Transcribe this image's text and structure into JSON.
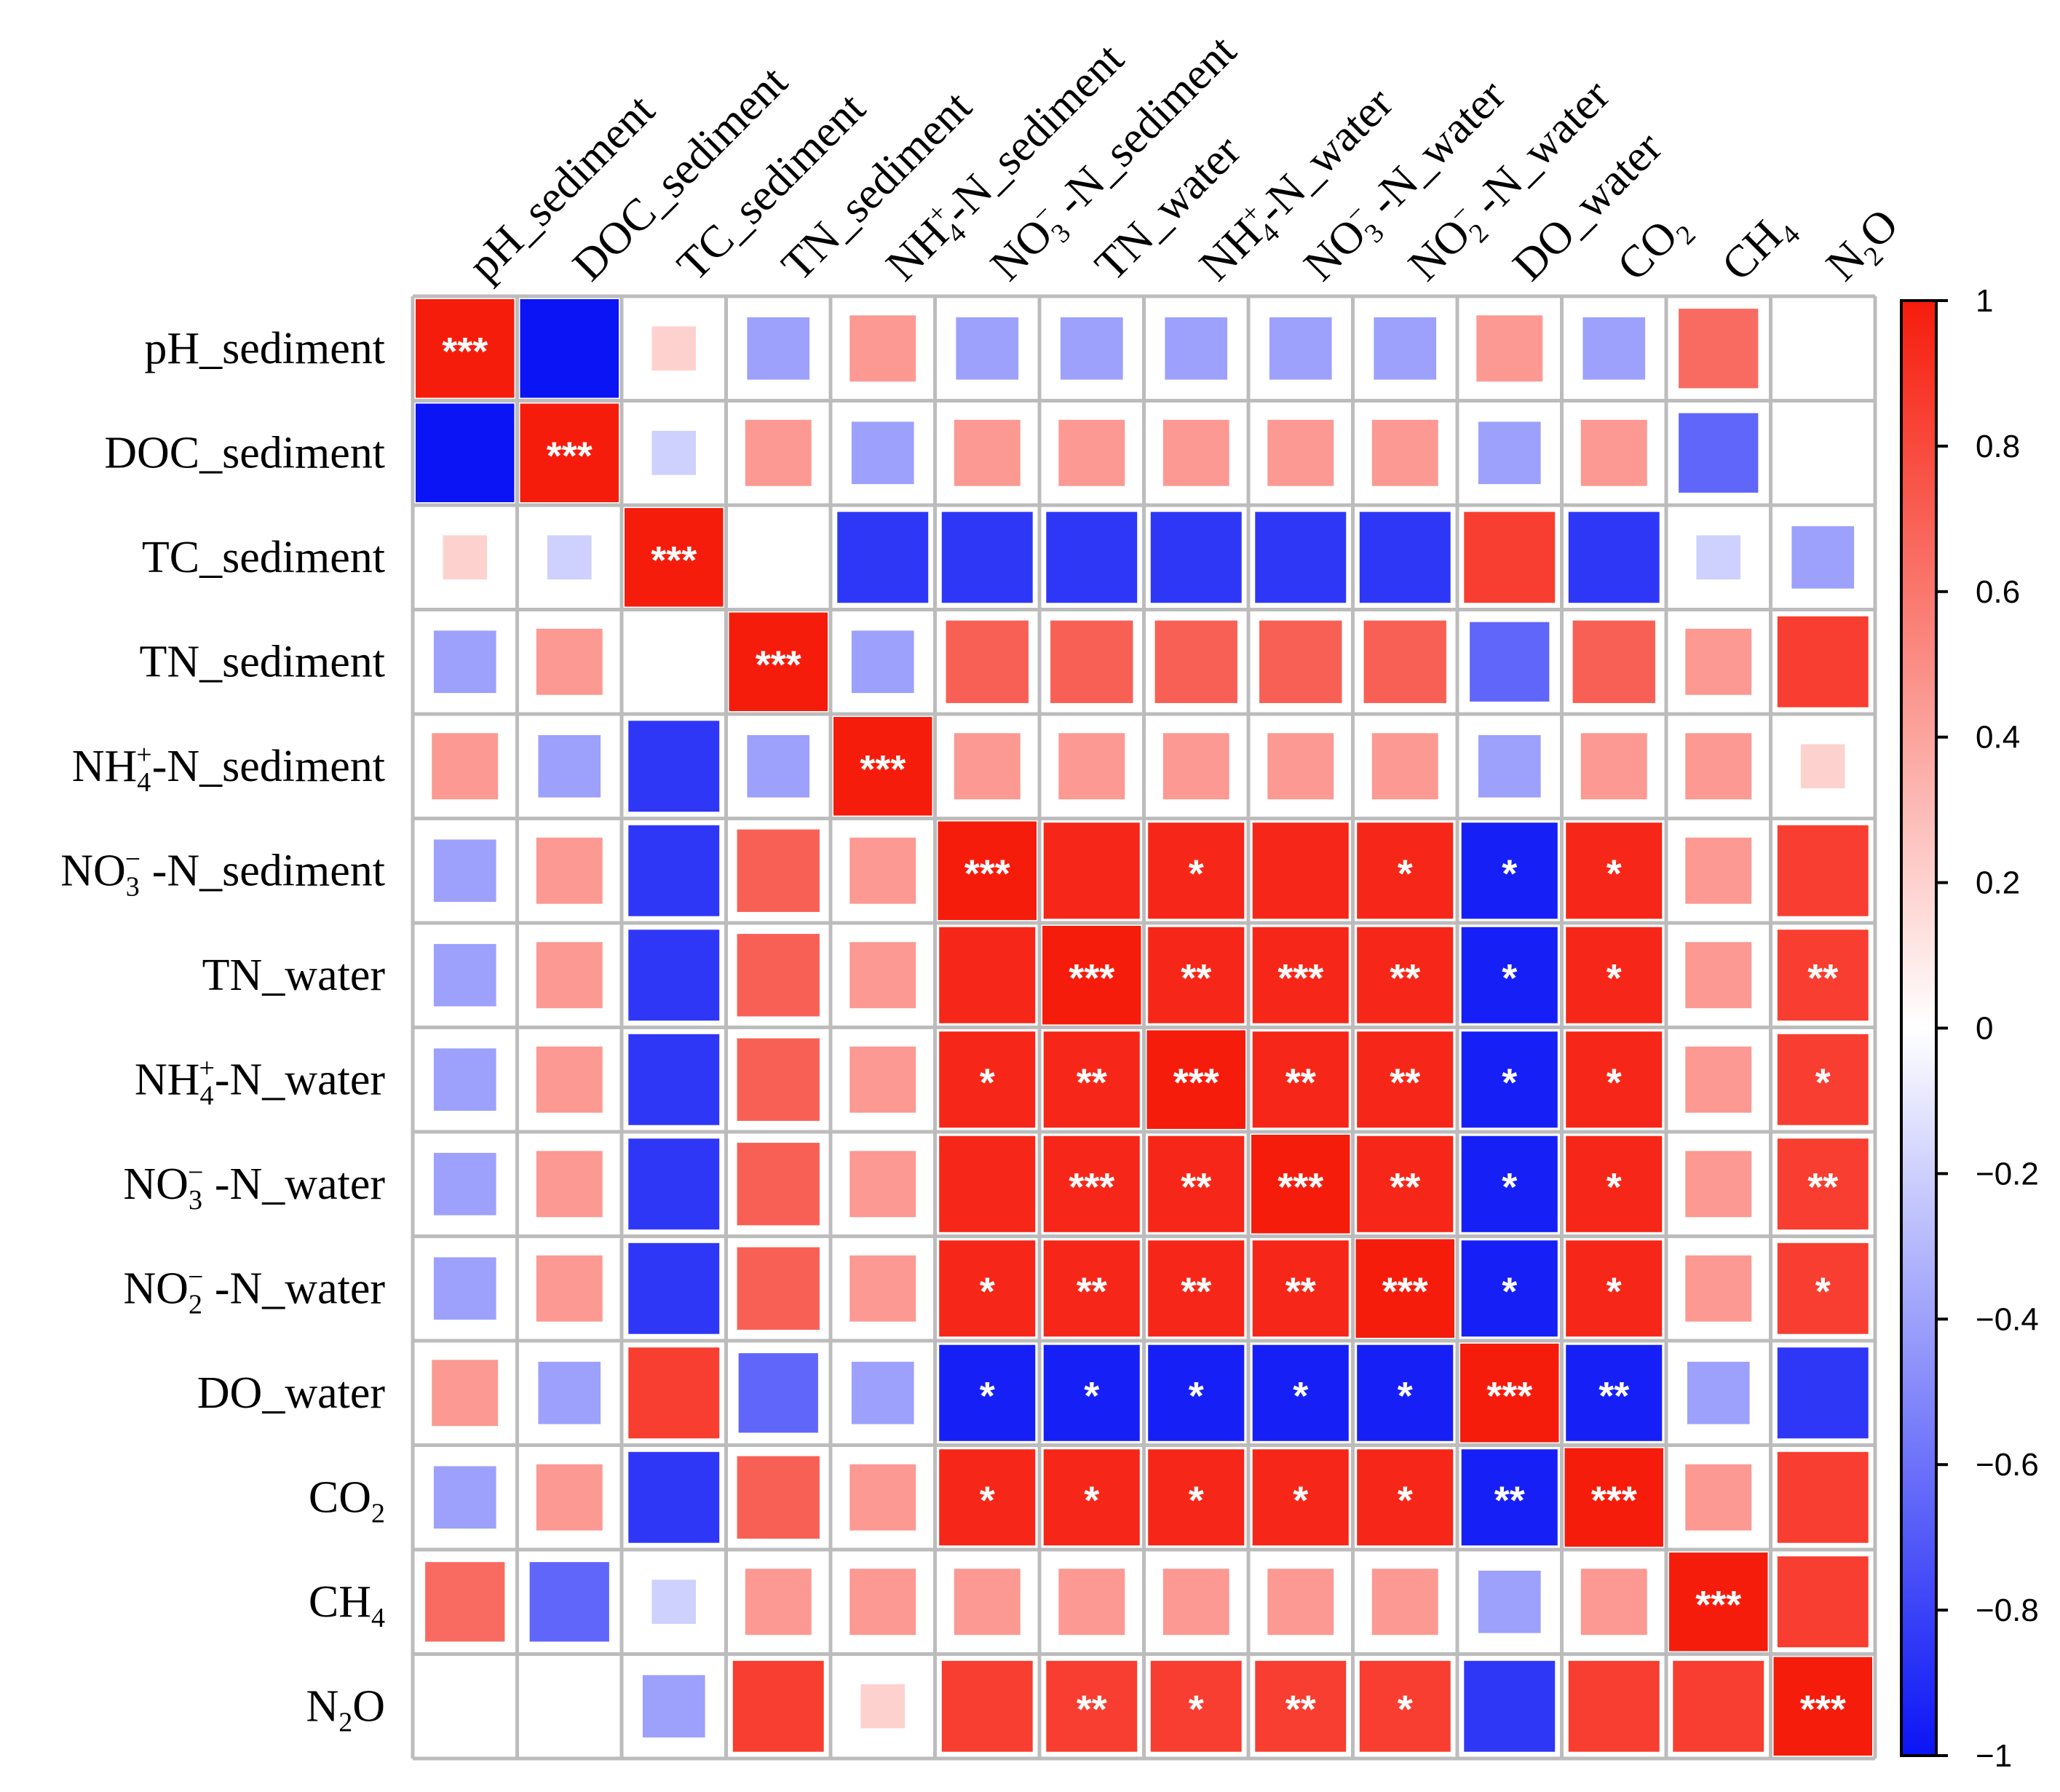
{
  "chart_data": {
    "type": "heatmap",
    "title": "",
    "variables": [
      {
        "id": "pH_sediment",
        "parts": [
          [
            "pH_sediment",
            ""
          ]
        ]
      },
      {
        "id": "DOC_sediment",
        "parts": [
          [
            "DOC_sediment",
            ""
          ]
        ]
      },
      {
        "id": "TC_sediment",
        "parts": [
          [
            "TC_sediment",
            ""
          ]
        ]
      },
      {
        "id": "TN_sediment",
        "parts": [
          [
            "TN_sediment",
            ""
          ]
        ]
      },
      {
        "id": "NH4+-N_sediment",
        "parts": [
          [
            "NH",
            ""
          ],
          [
            "4",
            "sub"
          ],
          [
            "+",
            "sup"
          ],
          [
            "-N_sediment",
            ""
          ]
        ]
      },
      {
        "id": "NO3- -N_sediment",
        "parts": [
          [
            "NO",
            ""
          ],
          [
            "3",
            "sub"
          ],
          [
            "−",
            "sup"
          ],
          [
            " -N_sediment",
            ""
          ]
        ]
      },
      {
        "id": "TN_water",
        "parts": [
          [
            "TN_water",
            ""
          ]
        ]
      },
      {
        "id": "NH4+-N_water",
        "parts": [
          [
            "NH",
            ""
          ],
          [
            "4",
            "sub"
          ],
          [
            "+",
            "sup"
          ],
          [
            "-N_water",
            ""
          ]
        ]
      },
      {
        "id": "NO3- -N_water",
        "parts": [
          [
            "NO",
            ""
          ],
          [
            "3",
            "sub"
          ],
          [
            "−",
            "sup"
          ],
          [
            " -N_water",
            ""
          ]
        ]
      },
      {
        "id": "NO2- -N_water",
        "parts": [
          [
            "NO",
            ""
          ],
          [
            "2",
            "sub"
          ],
          [
            "−",
            "sup"
          ],
          [
            " -N_water",
            ""
          ]
        ]
      },
      {
        "id": "DO_water",
        "parts": [
          [
            "DO_water",
            ""
          ]
        ]
      },
      {
        "id": "CO2",
        "parts": [
          [
            "CO",
            ""
          ],
          [
            "2",
            "sub"
          ]
        ]
      },
      {
        "id": "CH4",
        "parts": [
          [
            "CH",
            ""
          ],
          [
            "4",
            "sub"
          ]
        ]
      },
      {
        "id": "N2O",
        "parts": [
          [
            "N",
            ""
          ],
          [
            "2",
            "sub"
          ],
          [
            "O",
            ""
          ]
        ]
      }
    ],
    "values": [
      [
        1.0,
        -1.0,
        0.2,
        -0.4,
        0.45,
        -0.4,
        -0.4,
        -0.4,
        -0.4,
        -0.4,
        0.45,
        -0.4,
        0.65,
        0.0
      ],
      [
        -1.0,
        1.0,
        -0.2,
        0.45,
        -0.4,
        0.45,
        0.45,
        0.45,
        0.45,
        0.45,
        -0.4,
        0.45,
        -0.65,
        0.0
      ],
      [
        0.2,
        -0.2,
        1.0,
        0.0,
        -0.85,
        -0.85,
        -0.85,
        -0.85,
        -0.85,
        -0.85,
        0.85,
        -0.85,
        -0.2,
        -0.4
      ],
      [
        -0.4,
        0.45,
        0.0,
        1.0,
        -0.4,
        0.7,
        0.7,
        0.7,
        0.7,
        0.7,
        -0.65,
        0.7,
        0.45,
        0.85
      ],
      [
        0.45,
        -0.4,
        -0.85,
        -0.4,
        1.0,
        0.45,
        0.45,
        0.45,
        0.45,
        0.45,
        -0.4,
        0.45,
        0.45,
        0.2
      ],
      [
        -0.4,
        0.45,
        -0.85,
        0.7,
        0.45,
        1.0,
        0.95,
        0.95,
        0.95,
        0.95,
        -0.95,
        0.95,
        0.45,
        0.85
      ],
      [
        -0.4,
        0.45,
        -0.85,
        0.7,
        0.45,
        0.95,
        1.0,
        0.95,
        0.95,
        0.95,
        -0.95,
        0.95,
        0.45,
        0.85
      ],
      [
        -0.4,
        0.45,
        -0.85,
        0.7,
        0.45,
        0.95,
        0.95,
        1.0,
        0.95,
        0.95,
        -0.95,
        0.95,
        0.45,
        0.85
      ],
      [
        -0.4,
        0.45,
        -0.85,
        0.7,
        0.45,
        0.95,
        0.95,
        0.95,
        1.0,
        0.95,
        -0.95,
        0.95,
        0.45,
        0.85
      ],
      [
        -0.4,
        0.45,
        -0.85,
        0.7,
        0.45,
        0.95,
        0.95,
        0.95,
        0.95,
        1.0,
        -0.95,
        0.95,
        0.45,
        0.85
      ],
      [
        0.45,
        -0.4,
        0.85,
        -0.65,
        -0.4,
        -0.95,
        -0.95,
        -0.95,
        -0.95,
        -0.95,
        1.0,
        -0.95,
        -0.4,
        -0.85
      ],
      [
        -0.4,
        0.45,
        -0.85,
        0.7,
        0.45,
        0.95,
        0.95,
        0.95,
        0.95,
        0.95,
        -0.95,
        1.0,
        0.45,
        0.85
      ],
      [
        0.65,
        -0.65,
        -0.2,
        0.45,
        0.45,
        0.45,
        0.45,
        0.45,
        0.45,
        0.45,
        -0.4,
        0.45,
        1.0,
        0.85
      ],
      [
        0.0,
        0.0,
        -0.4,
        0.85,
        0.2,
        0.85,
        0.85,
        0.85,
        0.85,
        0.85,
        -0.85,
        0.85,
        0.85,
        1.0
      ]
    ],
    "significance": [
      [
        "***",
        "",
        "",
        "",
        "",
        "",
        "",
        "",
        "",
        "",
        "",
        "",
        "",
        ""
      ],
      [
        "",
        "***",
        "",
        "",
        "",
        "",
        "",
        "",
        "",
        "",
        "",
        "",
        "",
        ""
      ],
      [
        "",
        "",
        "***",
        "",
        "",
        "",
        "",
        "",
        "",
        "",
        "",
        "",
        "",
        ""
      ],
      [
        "",
        "",
        "",
        "***",
        "",
        "",
        "",
        "",
        "",
        "",
        "",
        "",
        "",
        ""
      ],
      [
        "",
        "",
        "",
        "",
        "***",
        "",
        "",
        "",
        "",
        "",
        "",
        "",
        "",
        ""
      ],
      [
        "",
        "",
        "",
        "",
        "",
        "***",
        "",
        "*",
        "",
        "*",
        "*",
        "*",
        "",
        ""
      ],
      [
        "",
        "",
        "",
        "",
        "",
        "",
        "***",
        "**",
        "***",
        "**",
        "*",
        "*",
        "",
        "**"
      ],
      [
        "",
        "",
        "",
        "",
        "",
        "*",
        "**",
        "***",
        "**",
        "**",
        "*",
        "*",
        "",
        "*"
      ],
      [
        "",
        "",
        "",
        "",
        "",
        "",
        "***",
        "**",
        "***",
        "**",
        "*",
        "*",
        "",
        "**"
      ],
      [
        "",
        "",
        "",
        "",
        "",
        "*",
        "**",
        "**",
        "**",
        "***",
        "*",
        "*",
        "",
        "*"
      ],
      [
        "",
        "",
        "",
        "",
        "",
        "*",
        "*",
        "*",
        "*",
        "*",
        "***",
        "**",
        "",
        ""
      ],
      [
        "",
        "",
        "",
        "",
        "",
        "*",
        "*",
        "*",
        "*",
        "*",
        "**",
        "***",
        "",
        ""
      ],
      [
        "",
        "",
        "",
        "",
        "",
        "",
        "",
        "",
        "",
        "",
        "",
        "",
        "***",
        ""
      ],
      [
        "",
        "",
        "",
        "",
        "",
        "",
        "**",
        "*",
        "**",
        "*",
        "",
        "",
        "",
        "***"
      ]
    ],
    "colorbar": {
      "range": [
        -1,
        1
      ],
      "ticks": [
        1,
        0.8,
        0.6,
        0.4,
        0.2,
        0,
        -0.2,
        -0.4,
        -0.6,
        -0.8,
        -1
      ],
      "tick_labels": [
        "1",
        "0.8",
        "0.6",
        "0.4",
        "0.2",
        "0",
        "−0.2",
        "−0.4",
        "−0.6",
        "−0.8",
        "−1"
      ],
      "colors": {
        "negative": "#0a14f5",
        "zero": "#ffffff",
        "positive": "#f61c0c"
      }
    },
    "grid_color": "#bcbcbc"
  }
}
